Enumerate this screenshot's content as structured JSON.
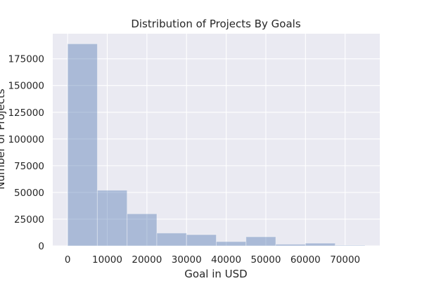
{
  "chart_data": {
    "type": "bar",
    "title": "Distribution of Projects By Goals",
    "xlabel": "Goal in USD",
    "ylabel": "Number of Projects",
    "bins": [
      [
        0,
        7500
      ],
      [
        7500,
        15000
      ],
      [
        15000,
        22500
      ],
      [
        22500,
        30000
      ],
      [
        30000,
        37500
      ],
      [
        37500,
        45000
      ],
      [
        45000,
        52500
      ],
      [
        52500,
        60000
      ],
      [
        60000,
        67500
      ],
      [
        67500,
        75000
      ]
    ],
    "values": [
      189000,
      52000,
      30000,
      12000,
      10500,
      4000,
      8500,
      1500,
      2500,
      500
    ],
    "xlim": [
      -3750,
      78750
    ],
    "ylim": [
      0,
      198450
    ],
    "xticks": [
      0,
      10000,
      20000,
      30000,
      40000,
      50000,
      60000,
      70000
    ],
    "yticks": [
      0,
      25000,
      50000,
      75000,
      100000,
      125000,
      150000,
      175000
    ],
    "grid": true,
    "style": "seaborn-darkgrid",
    "colors": {
      "axes_background": "#eaeaf2",
      "grid": "#ffffff",
      "bar_fill": "#4c72b0",
      "bar_fill_opacity": 0.4,
      "text": "#262626"
    }
  }
}
